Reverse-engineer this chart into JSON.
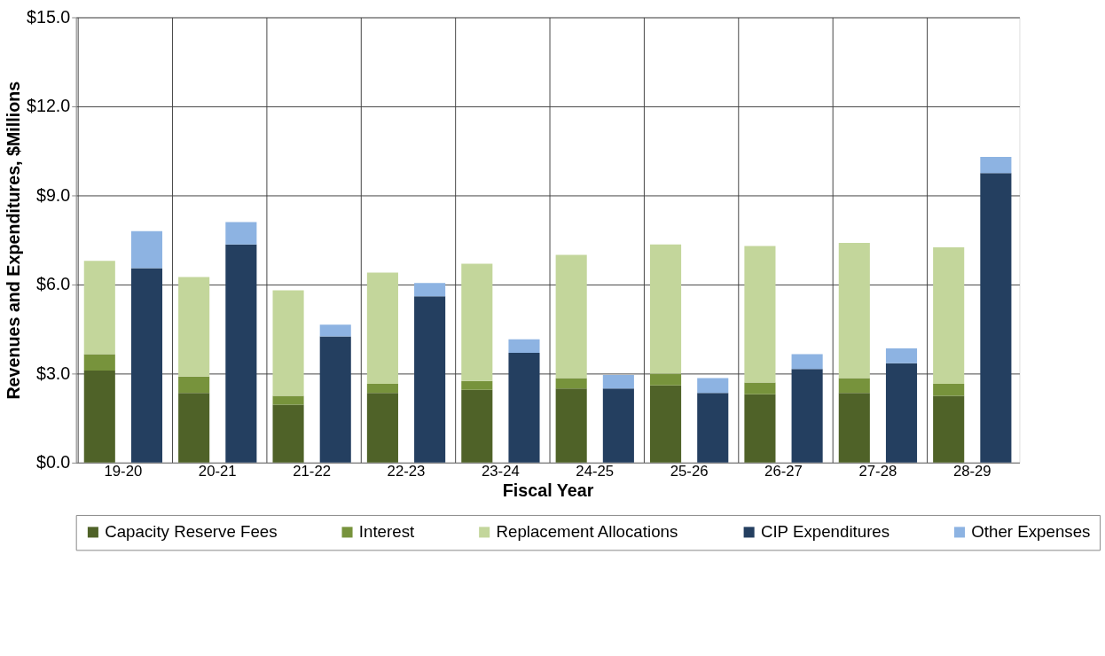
{
  "chart_data": {
    "type": "bar",
    "stacked": true,
    "xlabel": "Fiscal Year",
    "ylabel": "Revenues and Expenditures, $Millions",
    "categories": [
      "19-20",
      null,
      "20-21",
      null,
      "21-22",
      null,
      "22-23",
      null,
      "23-24",
      null,
      "24-25",
      null,
      "25-26",
      null,
      "26-27",
      null,
      "27-28",
      null,
      "28-29",
      null
    ],
    "series": [
      {
        "name": "Capacity Reserve Fees",
        "color": "#4f6228",
        "values": [
          3.1,
          null,
          2.35,
          null,
          1.95,
          null,
          2.35,
          null,
          2.45,
          null,
          2.5,
          null,
          2.6,
          null,
          2.3,
          null,
          2.35,
          null,
          2.25,
          null
        ]
      },
      {
        "name": "Interest",
        "color": "#77933c",
        "values": [
          0.55,
          null,
          0.55,
          null,
          0.3,
          null,
          0.3,
          null,
          0.3,
          null,
          0.35,
          null,
          0.4,
          null,
          0.4,
          null,
          0.5,
          null,
          0.4,
          null
        ]
      },
      {
        "name": "Replacement Allocations",
        "color": "#c3d69b",
        "values": [
          3.15,
          null,
          3.35,
          null,
          3.55,
          null,
          3.75,
          null,
          3.95,
          null,
          4.15,
          null,
          4.35,
          null,
          4.6,
          null,
          4.55,
          null,
          4.6,
          null
        ]
      },
      {
        "name": "CIP Expenditures",
        "color": "#243f60",
        "values": [
          null,
          6.55,
          null,
          7.35,
          null,
          4.25,
          null,
          5.6,
          null,
          3.7,
          null,
          2.5,
          null,
          2.35,
          null,
          3.15,
          null,
          3.35,
          null,
          9.75
        ]
      },
      {
        "name": "Other Expenses",
        "color": "#8db3e2",
        "values": [
          null,
          1.25,
          null,
          0.75,
          null,
          0.4,
          null,
          0.45,
          null,
          0.45,
          null,
          0.45,
          null,
          0.5,
          null,
          0.5,
          null,
          0.5,
          null,
          0.55
        ]
      }
    ],
    "ylim": [
      0,
      15
    ],
    "yticks": [
      {
        "value": 0,
        "label": "$0.0"
      },
      {
        "value": 3,
        "label": "$3.0"
      },
      {
        "value": 6,
        "label": "$6.0"
      },
      {
        "value": 9,
        "label": "$9.0"
      },
      {
        "value": 12,
        "label": "$12.0"
      },
      {
        "value": 15,
        "label": "$15.0"
      }
    ],
    "grid": true,
    "legend": "bottom"
  }
}
